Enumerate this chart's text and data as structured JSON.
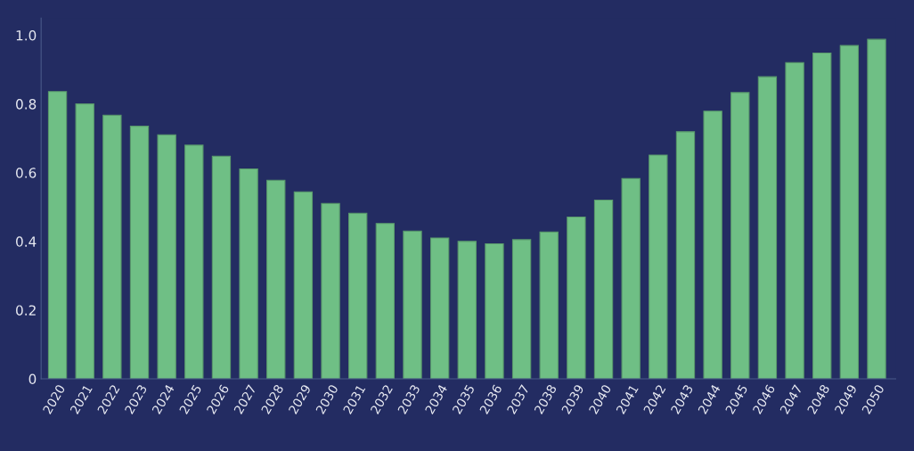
{
  "chart_data": {
    "type": "bar",
    "categories": [
      "2020",
      "2021",
      "2022",
      "2023",
      "2024",
      "2025",
      "2026",
      "2027",
      "2028",
      "2029",
      "2030",
      "2031",
      "2032",
      "2033",
      "2034",
      "2035",
      "2036",
      "2037",
      "2038",
      "2039",
      "2040",
      "2041",
      "2042",
      "2043",
      "2044",
      "2045",
      "2046",
      "2047",
      "2048",
      "2049",
      "2050"
    ],
    "values": [
      0.836,
      0.8,
      0.767,
      0.735,
      0.71,
      0.68,
      0.648,
      0.611,
      0.578,
      0.544,
      0.51,
      0.482,
      0.452,
      0.43,
      0.41,
      0.4,
      0.393,
      0.405,
      0.427,
      0.471,
      0.52,
      0.583,
      0.651,
      0.719,
      0.779,
      0.833,
      0.879,
      0.92,
      0.948,
      0.97,
      0.988
    ],
    "color": "#6fbf85",
    "ylim": [
      0,
      1.05
    ],
    "yticks": [
      0,
      0.2,
      0.4,
      0.6,
      0.8,
      {
        "value": 1,
        "label": "1.0"
      }
    ],
    "grid": false
  }
}
